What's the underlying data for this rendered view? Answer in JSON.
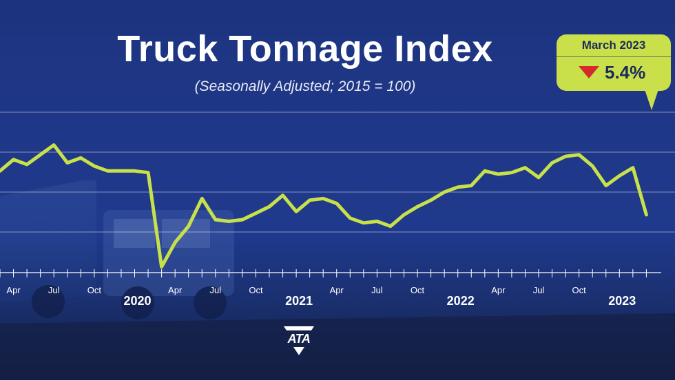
{
  "chart_data": {
    "type": "line",
    "title": "Truck Tonnage Index",
    "subtitle": "(Seasonally Adjusted; 2015 = 100)",
    "x": [
      "2019-03",
      "2019-04",
      "2019-05",
      "2019-06",
      "2019-07",
      "2019-08",
      "2019-09",
      "2019-10",
      "2019-11",
      "2019-12",
      "2020-01",
      "2020-02",
      "2020-03",
      "2020-04",
      "2020-05",
      "2020-06",
      "2020-07",
      "2020-08",
      "2020-09",
      "2020-10",
      "2020-11",
      "2020-12",
      "2021-01",
      "2021-02",
      "2021-03",
      "2021-04",
      "2021-05",
      "2021-06",
      "2021-07",
      "2021-08",
      "2021-09",
      "2021-10",
      "2021-11",
      "2021-12",
      "2022-01",
      "2022-02",
      "2022-03",
      "2022-04",
      "2022-05",
      "2022-06",
      "2022-07",
      "2022-08",
      "2022-09",
      "2022-10",
      "2022-11",
      "2022-12",
      "2023-01",
      "2023-02",
      "2023-03"
    ],
    "series": [
      {
        "color": "#c8e04a",
        "values": [
          117.6,
          119.0,
          118.4,
          119.6,
          120.8,
          118.6,
          119.2,
          118.2,
          117.6,
          117.6,
          117.6,
          117.4,
          105.8,
          108.8,
          110.8,
          114.2,
          111.6,
          111.4,
          111.6,
          112.4,
          113.2,
          114.6,
          112.6,
          114.0,
          114.2,
          113.6,
          111.8,
          111.2,
          111.4,
          110.8,
          112.2,
          113.2,
          114.0,
          115.0,
          115.6,
          115.8,
          117.6,
          117.2,
          117.4,
          118.0,
          116.8,
          118.6,
          119.4,
          119.6,
          118.2,
          115.8,
          117.0,
          118.0,
          112.2
        ]
      }
    ],
    "x_month_ticks": [
      "Apr",
      "Jul",
      "Oct",
      "2020",
      "Apr",
      "Jul",
      "Oct",
      "2021",
      "Apr",
      "Jul",
      "Oct",
      "2022",
      "Apr",
      "Jul",
      "Oct",
      "2023"
    ],
    "grid": true,
    "callout": {
      "label": "March 2023",
      "value": "5.4%",
      "direction": "down",
      "arrow_color": "#d42a2a",
      "box_color": "#c9e04a"
    }
  },
  "logo": {
    "text": "ATA"
  }
}
